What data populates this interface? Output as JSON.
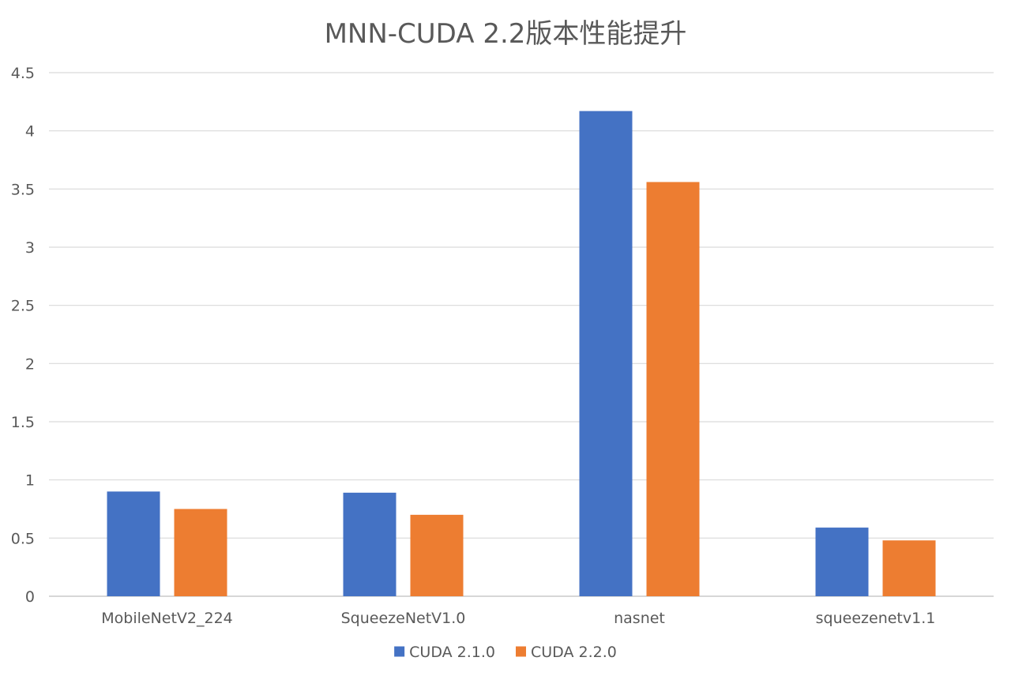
{
  "chart_data": {
    "type": "bar",
    "title": "MNN-CUDA 2.2版本性能提升",
    "xlabel": "",
    "ylabel": "",
    "categories": [
      "MobileNetV2_224",
      "SqueezeNetV1.0",
      "nasnet",
      "squeezenetv1.1"
    ],
    "series": [
      {
        "name": "CUDA 2.1.0",
        "color": "#4472C4",
        "values": [
          0.9,
          0.89,
          4.17,
          0.59
        ]
      },
      {
        "name": "CUDA 2.2.0",
        "color": "#ED7D31",
        "values": [
          0.75,
          0.7,
          3.56,
          0.48
        ]
      }
    ],
    "ylim": [
      0,
      4.5
    ],
    "yticks": [
      "0",
      "0.5",
      "1",
      "1.5",
      "2",
      "2.5",
      "3",
      "3.5",
      "4",
      "4.5"
    ],
    "grid": true,
    "legend_position": "bottom"
  }
}
